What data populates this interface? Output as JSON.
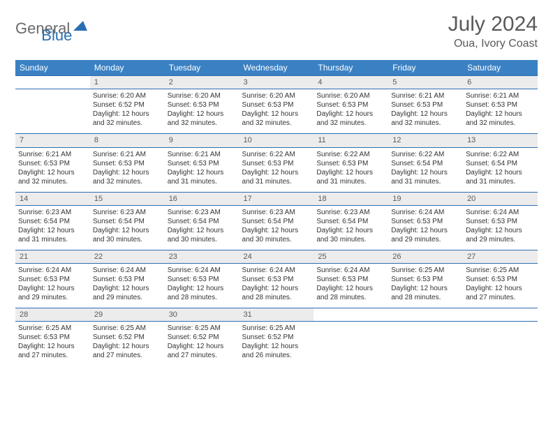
{
  "logo": {
    "part1": "General",
    "part2": "Blue"
  },
  "title": "July 2024",
  "location": "Oua, Ivory Coast",
  "colors": {
    "header_bg": "#3a81c4",
    "rule": "#2b6fb3",
    "daynum_bg": "#ececec",
    "daynum_fg": "#5a5a5a",
    "text": "#333333",
    "logo_gray": "#6a6a6a",
    "logo_blue": "#2b6fb3",
    "page_bg": "#ffffff"
  },
  "typography": {
    "header_fontsize": 12,
    "cell_fontsize": 10,
    "title_fontsize": 30,
    "location_fontsize": 16
  },
  "weekdays": [
    "Sunday",
    "Monday",
    "Tuesday",
    "Wednesday",
    "Thursday",
    "Friday",
    "Saturday"
  ],
  "weeks": [
    {
      "nums": [
        "",
        "1",
        "2",
        "3",
        "4",
        "5",
        "6"
      ],
      "cells": [
        null,
        {
          "sunrise": "Sunrise: 6:20 AM",
          "sunset": "Sunset: 6:52 PM",
          "d1": "Daylight: 12 hours",
          "d2": "and 32 minutes."
        },
        {
          "sunrise": "Sunrise: 6:20 AM",
          "sunset": "Sunset: 6:53 PM",
          "d1": "Daylight: 12 hours",
          "d2": "and 32 minutes."
        },
        {
          "sunrise": "Sunrise: 6:20 AM",
          "sunset": "Sunset: 6:53 PM",
          "d1": "Daylight: 12 hours",
          "d2": "and 32 minutes."
        },
        {
          "sunrise": "Sunrise: 6:20 AM",
          "sunset": "Sunset: 6:53 PM",
          "d1": "Daylight: 12 hours",
          "d2": "and 32 minutes."
        },
        {
          "sunrise": "Sunrise: 6:21 AM",
          "sunset": "Sunset: 6:53 PM",
          "d1": "Daylight: 12 hours",
          "d2": "and 32 minutes."
        },
        {
          "sunrise": "Sunrise: 6:21 AM",
          "sunset": "Sunset: 6:53 PM",
          "d1": "Daylight: 12 hours",
          "d2": "and 32 minutes."
        }
      ]
    },
    {
      "nums": [
        "7",
        "8",
        "9",
        "10",
        "11",
        "12",
        "13"
      ],
      "cells": [
        {
          "sunrise": "Sunrise: 6:21 AM",
          "sunset": "Sunset: 6:53 PM",
          "d1": "Daylight: 12 hours",
          "d2": "and 32 minutes."
        },
        {
          "sunrise": "Sunrise: 6:21 AM",
          "sunset": "Sunset: 6:53 PM",
          "d1": "Daylight: 12 hours",
          "d2": "and 32 minutes."
        },
        {
          "sunrise": "Sunrise: 6:21 AM",
          "sunset": "Sunset: 6:53 PM",
          "d1": "Daylight: 12 hours",
          "d2": "and 31 minutes."
        },
        {
          "sunrise": "Sunrise: 6:22 AM",
          "sunset": "Sunset: 6:53 PM",
          "d1": "Daylight: 12 hours",
          "d2": "and 31 minutes."
        },
        {
          "sunrise": "Sunrise: 6:22 AM",
          "sunset": "Sunset: 6:53 PM",
          "d1": "Daylight: 12 hours",
          "d2": "and 31 minutes."
        },
        {
          "sunrise": "Sunrise: 6:22 AM",
          "sunset": "Sunset: 6:54 PM",
          "d1": "Daylight: 12 hours",
          "d2": "and 31 minutes."
        },
        {
          "sunrise": "Sunrise: 6:22 AM",
          "sunset": "Sunset: 6:54 PM",
          "d1": "Daylight: 12 hours",
          "d2": "and 31 minutes."
        }
      ]
    },
    {
      "nums": [
        "14",
        "15",
        "16",
        "17",
        "18",
        "19",
        "20"
      ],
      "cells": [
        {
          "sunrise": "Sunrise: 6:23 AM",
          "sunset": "Sunset: 6:54 PM",
          "d1": "Daylight: 12 hours",
          "d2": "and 31 minutes."
        },
        {
          "sunrise": "Sunrise: 6:23 AM",
          "sunset": "Sunset: 6:54 PM",
          "d1": "Daylight: 12 hours",
          "d2": "and 30 minutes."
        },
        {
          "sunrise": "Sunrise: 6:23 AM",
          "sunset": "Sunset: 6:54 PM",
          "d1": "Daylight: 12 hours",
          "d2": "and 30 minutes."
        },
        {
          "sunrise": "Sunrise: 6:23 AM",
          "sunset": "Sunset: 6:54 PM",
          "d1": "Daylight: 12 hours",
          "d2": "and 30 minutes."
        },
        {
          "sunrise": "Sunrise: 6:23 AM",
          "sunset": "Sunset: 6:54 PM",
          "d1": "Daylight: 12 hours",
          "d2": "and 30 minutes."
        },
        {
          "sunrise": "Sunrise: 6:24 AM",
          "sunset": "Sunset: 6:53 PM",
          "d1": "Daylight: 12 hours",
          "d2": "and 29 minutes."
        },
        {
          "sunrise": "Sunrise: 6:24 AM",
          "sunset": "Sunset: 6:53 PM",
          "d1": "Daylight: 12 hours",
          "d2": "and 29 minutes."
        }
      ]
    },
    {
      "nums": [
        "21",
        "22",
        "23",
        "24",
        "25",
        "26",
        "27"
      ],
      "cells": [
        {
          "sunrise": "Sunrise: 6:24 AM",
          "sunset": "Sunset: 6:53 PM",
          "d1": "Daylight: 12 hours",
          "d2": "and 29 minutes."
        },
        {
          "sunrise": "Sunrise: 6:24 AM",
          "sunset": "Sunset: 6:53 PM",
          "d1": "Daylight: 12 hours",
          "d2": "and 29 minutes."
        },
        {
          "sunrise": "Sunrise: 6:24 AM",
          "sunset": "Sunset: 6:53 PM",
          "d1": "Daylight: 12 hours",
          "d2": "and 28 minutes."
        },
        {
          "sunrise": "Sunrise: 6:24 AM",
          "sunset": "Sunset: 6:53 PM",
          "d1": "Daylight: 12 hours",
          "d2": "and 28 minutes."
        },
        {
          "sunrise": "Sunrise: 6:24 AM",
          "sunset": "Sunset: 6:53 PM",
          "d1": "Daylight: 12 hours",
          "d2": "and 28 minutes."
        },
        {
          "sunrise": "Sunrise: 6:25 AM",
          "sunset": "Sunset: 6:53 PM",
          "d1": "Daylight: 12 hours",
          "d2": "and 28 minutes."
        },
        {
          "sunrise": "Sunrise: 6:25 AM",
          "sunset": "Sunset: 6:53 PM",
          "d1": "Daylight: 12 hours",
          "d2": "and 27 minutes."
        }
      ]
    },
    {
      "nums": [
        "28",
        "29",
        "30",
        "31",
        "",
        "",
        ""
      ],
      "cells": [
        {
          "sunrise": "Sunrise: 6:25 AM",
          "sunset": "Sunset: 6:53 PM",
          "d1": "Daylight: 12 hours",
          "d2": "and 27 minutes."
        },
        {
          "sunrise": "Sunrise: 6:25 AM",
          "sunset": "Sunset: 6:52 PM",
          "d1": "Daylight: 12 hours",
          "d2": "and 27 minutes."
        },
        {
          "sunrise": "Sunrise: 6:25 AM",
          "sunset": "Sunset: 6:52 PM",
          "d1": "Daylight: 12 hours",
          "d2": "and 27 minutes."
        },
        {
          "sunrise": "Sunrise: 6:25 AM",
          "sunset": "Sunset: 6:52 PM",
          "d1": "Daylight: 12 hours",
          "d2": "and 26 minutes."
        },
        null,
        null,
        null
      ]
    }
  ]
}
